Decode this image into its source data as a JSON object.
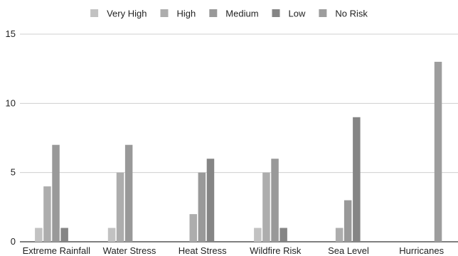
{
  "chart_data": {
    "type": "bar",
    "categories": [
      "Extreme Rainfall",
      "Water Stress",
      "Heat Stress",
      "Wildfire Risk",
      "Sea Level",
      "Hurricanes"
    ],
    "series": [
      {
        "name": "Very High",
        "color": "#c2c2c2",
        "values": [
          1,
          1,
          0,
          1,
          0,
          0
        ]
      },
      {
        "name": "High",
        "color": "#adadad",
        "values": [
          4,
          5,
          2,
          5,
          1,
          0
        ]
      },
      {
        "name": "Medium",
        "color": "#999999",
        "values": [
          7,
          7,
          5,
          6,
          3,
          0
        ]
      },
      {
        "name": "Low",
        "color": "#858585",
        "values": [
          1,
          0,
          6,
          1,
          9,
          0
        ]
      },
      {
        "name": "No Risk",
        "color": "#9d9d9d",
        "values": [
          0,
          0,
          0,
          0,
          0,
          13
        ]
      }
    ],
    "yticks": [
      0,
      5,
      10,
      15
    ],
    "ylim": [
      0,
      15
    ],
    "legend_position": "top-center",
    "grid": true
  }
}
